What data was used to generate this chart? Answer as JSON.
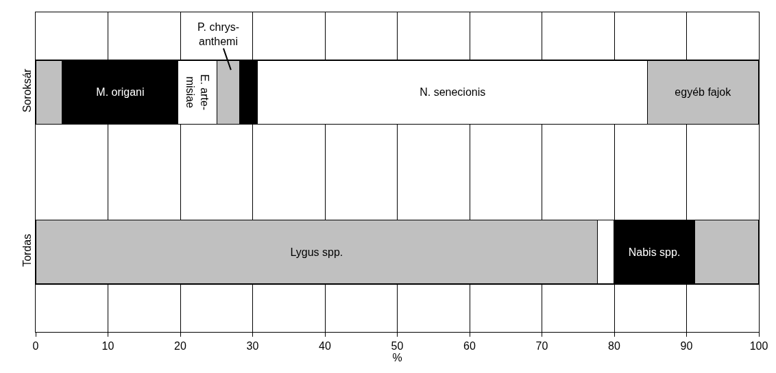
{
  "chart_data": {
    "type": "bar",
    "orientation": "horizontal",
    "stacked": true,
    "categories": [
      "Soroksár",
      "Tordas"
    ],
    "series": [
      {
        "color": "#c0c0c0",
        "values": [
          3.7,
          null
        ]
      },
      {
        "name": "M. origani",
        "color": "#000000",
        "values": [
          16.0,
          null
        ]
      },
      {
        "name": "E. arte-\nmisiae",
        "color": "#ffffff",
        "values": [
          5.4,
          null
        ]
      },
      {
        "color": "#c0c0c0",
        "values": [
          3.1,
          null
        ]
      },
      {
        "color": "#000000",
        "values": [
          2.5,
          null
        ]
      },
      {
        "name": "N. senecionis",
        "color": "#ffffff",
        "values": [
          53.9,
          null
        ]
      },
      {
        "name": "egyéb fajok",
        "color": "#c0c0c0",
        "values": [
          15.4,
          null
        ]
      },
      {
        "name": "Lygus spp.",
        "color": "#c0c0c0",
        "values": [
          null,
          77.7
        ]
      },
      {
        "color": "#ffffff",
        "values": [
          null,
          2.3
        ]
      },
      {
        "name": "Nabis spp.",
        "color": "#000000",
        "values": [
          null,
          11.1
        ]
      },
      {
        "color": "#c0c0c0",
        "values": [
          null,
          8.9
        ]
      }
    ],
    "annotations": [
      "P. chrys-\nanthemi"
    ],
    "xlabel": "%",
    "xlim": [
      0,
      100
    ],
    "xticks": [
      0,
      10,
      20,
      30,
      40,
      50,
      60,
      70,
      80,
      90,
      100
    ],
    "grid": "x",
    "legend": false
  }
}
